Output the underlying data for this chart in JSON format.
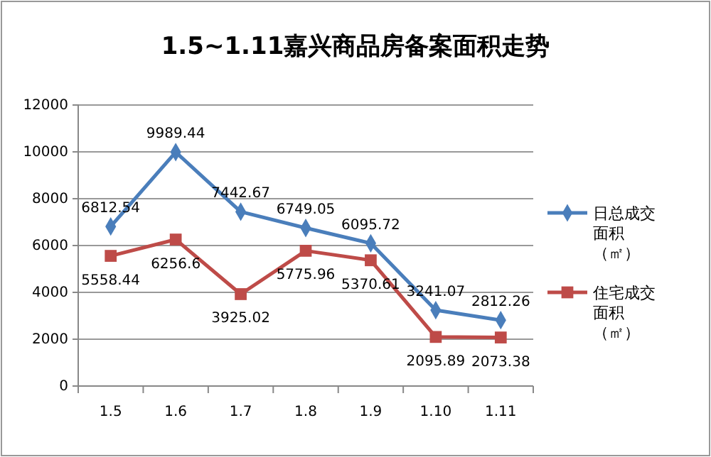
{
  "chart_data": {
    "type": "line",
    "title": "1.5~1.11嘉兴商品房备案面积走势",
    "categories": [
      "1.5",
      "1.6",
      "1.7",
      "1.8",
      "1.9",
      "1.10",
      "1.11"
    ],
    "series": [
      {
        "name": "日总成交面积（㎡）",
        "color": "#4a7ebb",
        "marker": "diamond",
        "values": [
          6812.54,
          9989.44,
          7442.67,
          6749.05,
          6095.72,
          3241.07,
          2812.26
        ]
      },
      {
        "name": "住宅成交面积（㎡）",
        "color": "#be4b48",
        "marker": "square",
        "values": [
          5558.44,
          6256.6,
          3925.02,
          5775.96,
          5370.61,
          2095.89,
          2073.38
        ]
      }
    ],
    "ylim": [
      0,
      12000
    ],
    "yticks": [
      0,
      2000,
      4000,
      6000,
      8000,
      10000,
      12000
    ],
    "grid": "y",
    "legend": "right",
    "data_labels": true
  }
}
